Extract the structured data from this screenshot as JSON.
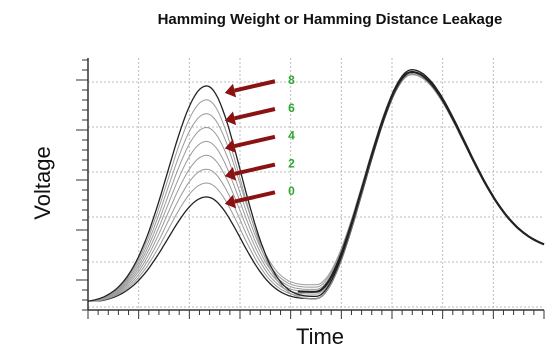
{
  "chart_data": {
    "type": "line",
    "title": "Hamming Weight or Hamming Distance Leakage",
    "xlabel": "Time",
    "ylabel": "Voltage",
    "xlim": [
      0,
      100
    ],
    "ylim": [
      0,
      100
    ],
    "grid": true,
    "colors": {
      "trace": "#9a9a9a",
      "main_trace": "#222222",
      "arrow": "#8b1212",
      "annotation": "#2ea832",
      "grid": "#bdbdbd",
      "axis": "#333333"
    },
    "first_peak": {
      "x": 26,
      "baseline": 0,
      "heights": [
        46,
        52,
        58,
        64,
        70,
        76,
        82,
        88,
        94
      ],
      "width": 8.5
    },
    "trough": {
      "x": 50,
      "values": [
        2,
        3,
        4,
        5,
        6,
        7,
        8
      ]
    },
    "second_peak": {
      "x": 71,
      "values": [
        99,
        100,
        101
      ]
    },
    "tail_end": 22,
    "annotations": [
      {
        "text": "8",
        "x": 43,
        "y": 93
      },
      {
        "text": "6",
        "x": 43,
        "y": 81
      },
      {
        "text": "4",
        "x": 43,
        "y": 69
      },
      {
        "text": "2",
        "x": 43,
        "y": 57
      },
      {
        "text": "0",
        "x": 43,
        "y": 45
      }
    ]
  }
}
